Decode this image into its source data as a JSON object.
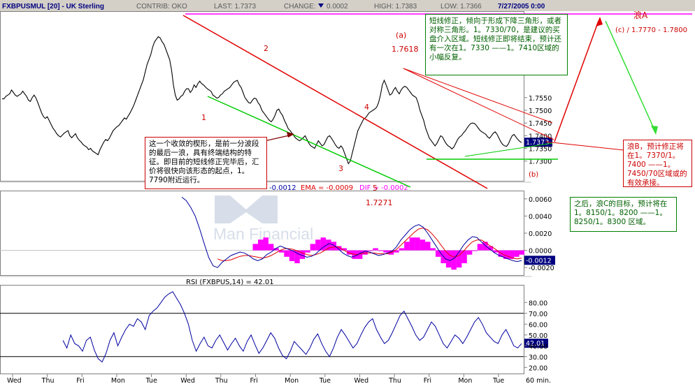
{
  "header": {
    "symbol": "FXBPUSMUL [20] - UK Sterling",
    "contrib": "CONTRIB: OKO",
    "last": "LAST: 1.7373",
    "change_label": "CHANGE:",
    "change_value": "0.0002",
    "high": "HIGH: 1.7383",
    "low": "LOW: 1.7366",
    "date": "7/27/2005 0:00"
  },
  "watermark": {
    "brand": "Man Financial"
  },
  "chart_data": [
    {
      "type": "line",
      "name": "price",
      "ylim": [
        1.7225,
        1.7885
      ],
      "yticks": [
        {
          "value": 1.73,
          "label": "1.7300"
        },
        {
          "value": 1.735,
          "label": "1.7350"
        },
        {
          "value": 1.74,
          "label": "1.7400"
        },
        {
          "value": 1.745,
          "label": "1.7450"
        },
        {
          "value": 1.75,
          "label": "1.7500"
        },
        {
          "value": 1.755,
          "label": "1.7550"
        }
      ],
      "last_value_label": "1.7373",
      "xlabels": [
        "Wed",
        "Thu",
        "Fri",
        "Mon",
        "Tue",
        "Wed",
        "Thu",
        "Fri",
        "Mon",
        "Tue",
        "Wed",
        "Thu",
        "Fri",
        "Mon",
        "Tue"
      ],
      "x_unit": "60 min.",
      "close": [
        1.7545,
        1.7545,
        1.7555,
        1.756,
        1.7565,
        1.758,
        1.757,
        1.756,
        1.7555,
        1.756,
        1.7565,
        1.7575,
        1.7565,
        1.7555,
        1.754,
        1.7535,
        1.755,
        1.756,
        1.7548,
        1.753,
        1.751,
        1.749,
        1.7475,
        1.7468,
        1.7475,
        1.746,
        1.7445,
        1.743,
        1.742,
        1.7408,
        1.74,
        1.7395,
        1.7402,
        1.741,
        1.7415,
        1.742,
        1.74,
        1.7392,
        1.74,
        1.7408,
        1.7392,
        1.7382,
        1.7375,
        1.7365,
        1.736,
        1.7355,
        1.7345,
        1.735,
        1.734,
        1.7335,
        1.733,
        1.7325,
        1.7345,
        1.736,
        1.7375,
        1.7385,
        1.738,
        1.739,
        1.7405,
        1.742,
        1.7428,
        1.7435,
        1.744,
        1.745,
        1.746,
        1.747,
        1.7465,
        1.7478,
        1.749,
        1.7505,
        1.752,
        1.754,
        1.756,
        1.758,
        1.76,
        1.762,
        1.765,
        1.768,
        1.77,
        1.772,
        1.775,
        1.777,
        1.778,
        1.779,
        1.7785,
        1.777,
        1.776,
        1.774,
        1.772,
        1.77,
        1.766,
        1.76,
        1.756,
        1.754,
        1.7545,
        1.7555,
        1.756,
        1.7575,
        1.7585,
        1.7585,
        1.757,
        1.758,
        1.76,
        1.759,
        1.7605,
        1.7615,
        1.7605,
        1.76,
        1.7592,
        1.7585,
        1.758,
        1.7575,
        1.756,
        1.7555,
        1.7548,
        1.755,
        1.756,
        1.7565,
        1.7575,
        1.758,
        1.7585,
        1.759,
        1.76,
        1.761,
        1.7615,
        1.7618,
        1.76,
        1.759,
        1.757,
        1.755,
        1.754,
        1.753,
        1.7528,
        1.754,
        1.7548,
        1.7545,
        1.753,
        1.752,
        1.75,
        1.749,
        1.748,
        1.747,
        1.746,
        1.7455,
        1.7465,
        1.748,
        1.75,
        1.7505,
        1.749,
        1.748,
        1.746,
        1.7445,
        1.7428,
        1.742,
        1.741,
        1.74,
        1.739,
        1.7385,
        1.738,
        1.7385,
        1.7392,
        1.74,
        1.7385,
        1.737,
        1.736,
        1.7355,
        1.735,
        1.7365,
        1.738,
        1.737,
        1.736,
        1.7365,
        1.738,
        1.7395,
        1.74,
        1.739,
        1.7378,
        1.7365,
        1.7355,
        1.735,
        1.736,
        1.735,
        1.733,
        1.731,
        1.729,
        1.73,
        1.733,
        1.736,
        1.739,
        1.742,
        1.7435,
        1.745,
        1.7465,
        1.747,
        1.748,
        1.749,
        1.7495,
        1.75,
        1.7505,
        1.7512,
        1.753,
        1.756,
        1.76,
        1.7618,
        1.76,
        1.758,
        1.756,
        1.7565,
        1.758,
        1.759,
        1.7575,
        1.7565,
        1.758,
        1.759,
        1.7595,
        1.759,
        1.758,
        1.757,
        1.756,
        1.7555,
        1.755,
        1.753,
        1.75,
        1.748,
        1.746,
        1.743,
        1.741,
        1.739,
        1.738,
        1.737,
        1.736,
        1.737,
        1.7385,
        1.74,
        1.7395,
        1.738,
        1.7368,
        1.736,
        1.7355,
        1.7348,
        1.7355,
        1.737,
        1.7385,
        1.7395,
        1.74,
        1.741,
        1.7418,
        1.743,
        1.744,
        1.7448,
        1.745,
        1.7448,
        1.744,
        1.743,
        1.742,
        1.7415,
        1.741,
        1.7405,
        1.7395,
        1.739,
        1.74,
        1.741,
        1.7415,
        1.7405,
        1.739,
        1.7375,
        1.7365,
        1.736,
        1.7358,
        1.7368,
        1.7385,
        1.74,
        1.7405,
        1.7395,
        1.7385,
        1.7378,
        1.7373
      ]
    },
    {
      "type": "line",
      "name": "macd",
      "ylim": [
        -0.0028,
        0.0068
      ],
      "yticks": [
        {
          "value": 0.006,
          "label": "0.0060"
        },
        {
          "value": 0.004,
          "label": "0.0040"
        },
        {
          "value": 0.002,
          "label": "0.0020"
        },
        {
          "value": 0,
          "label": "0.0000"
        },
        {
          "value": -0.002,
          "label": "-0.0020"
        }
      ],
      "legend": [
        "-0.0012",
        "EMA = -0.0009",
        "DIF = -0.0002"
      ],
      "last_value_label": "-0.0012",
      "macd": [
        0.0062,
        0.0058,
        0.005,
        0.004,
        0.0025,
        0.0008,
        -0.0008,
        -0.0018,
        -0.002,
        -0.0014,
        -0.001,
        -0.0006,
        -0.0004,
        -0.0002,
        -0.0003,
        -0.0006,
        -0.001,
        -0.0012,
        -0.001,
        -0.0005,
        -0.0002,
        0.0002,
        0.0005,
        0.0003,
        0.0001,
        -0.0001,
        -0.0004,
        -0.0006,
        -0.0008,
        -0.0007,
        -0.0004,
        0.0001,
        0.0005,
        0.0008,
        0.0006,
        0.0002,
        -0.0003,
        -0.0006,
        -0.0008,
        -0.0006,
        -0.0003,
        -0.0001,
        -0.0002,
        -0.0004,
        -0.0006,
        -0.0005,
        -0.0003,
        -0.0001,
        0.0004,
        0.0012,
        0.0018,
        0.0024,
        0.0028,
        0.003,
        0.0027,
        0.002,
        0.0012,
        0.0004,
        -0.0004,
        -0.001,
        -0.0012,
        -0.0009,
        -0.0002,
        0.0006,
        0.0012,
        0.0016,
        0.0015,
        0.001,
        0.0005,
        0.0001,
        -0.0003,
        -0.0006,
        -0.0008,
        -0.001,
        -0.0012,
        -0.0013,
        -0.0012
      ],
      "ema": [
        null,
        null,
        null,
        null,
        null,
        null,
        null,
        null,
        -0.001,
        -0.0012,
        -0.0012,
        -0.0011,
        -0.0009,
        -0.0007,
        -0.0006,
        -0.0006,
        -0.0007,
        -0.0008,
        -0.0009,
        -0.0008,
        -0.0006,
        -0.0003,
        0.0,
        0.0002,
        0.0002,
        0.0001,
        -0.0001,
        -0.0003,
        -0.0005,
        -0.0006,
        -0.0005,
        -0.0003,
        0.0,
        0.0003,
        0.0004,
        0.0004,
        0.0001,
        -0.0002,
        -0.0004,
        -0.0005,
        -0.0004,
        -0.0003,
        -0.0003,
        -0.0003,
        -0.0004,
        -0.0004,
        -0.0004,
        -0.0002,
        0.0001,
        0.0006,
        0.0011,
        0.0016,
        0.0021,
        0.0025,
        0.0026,
        0.0024,
        0.0019,
        0.0013,
        0.0006,
        -0.0001,
        -0.0006,
        -0.0008,
        -0.0006,
        -0.0001,
        0.0005,
        0.001,
        0.0012,
        0.0012,
        0.0009,
        0.0005,
        0.0002,
        -0.0002,
        -0.0005,
        -0.0007,
        -0.0009,
        -0.001,
        -0.0009
      ],
      "dif_hist": [
        0.0003,
        0.0005,
        0.0006,
        0.0003,
        0.0001,
        -0.0001,
        -0.0003,
        -0.0005,
        -0.0006,
        -0.0004,
        -0.0001,
        0.0003,
        0.0005,
        0.0006,
        0.0005,
        0.0004,
        0.0002,
        0.0001,
        -0.0002,
        -0.0004,
        -0.0004,
        -0.0002,
        0.0,
        0.0001,
        0.0,
        -0.0001,
        -0.0002,
        -0.0001,
        0.0001,
        0.0004,
        0.0006,
        0.0006,
        0.0005,
        0.0004,
        0.0001,
        -0.0003,
        -0.0006,
        -0.0008,
        -0.0009,
        -0.0008,
        -0.0006,
        -0.0002,
        0.0,
        0.0003,
        0.0004,
        0.0002,
        -0.0001,
        -0.0003,
        -0.0004,
        -0.0004,
        -0.0003,
        -0.0002
      ]
    },
    {
      "type": "line",
      "name": "rsi",
      "title": "RSI (FXBPUS,14) = 42.01",
      "ylim": [
        15,
        95
      ],
      "yticks": [
        {
          "value": 80,
          "label": "80.00"
        },
        {
          "value": 70,
          "label": "70.00"
        },
        {
          "value": 60,
          "label": "60.00"
        },
        {
          "value": 50,
          "label": "50.00"
        },
        {
          "value": 40,
          "label": "40.00"
        },
        {
          "value": 30,
          "label": "30.00"
        },
        {
          "value": 20,
          "label": "20.00"
        }
      ],
      "overbought": 70,
      "oversold": 30,
      "last_value_label": "42.01",
      "values": [
        45,
        38,
        50,
        42,
        40,
        35,
        45,
        48,
        36,
        28,
        25,
        33,
        45,
        52,
        40,
        48,
        55,
        60,
        58,
        65,
        62,
        55,
        68,
        72,
        75,
        80,
        85,
        88,
        90,
        84,
        78,
        70,
        60,
        45,
        35,
        42,
        48,
        40,
        38,
        45,
        50,
        43,
        36,
        42,
        47,
        40,
        35,
        44,
        50,
        41,
        33,
        38,
        45,
        52,
        47,
        38,
        31,
        28,
        35,
        44,
        40,
        36,
        32,
        38,
        46,
        51,
        42,
        35,
        30,
        38,
        48,
        55,
        50,
        44,
        38,
        42,
        50,
        57,
        62,
        65,
        55,
        48,
        42,
        45,
        52,
        60,
        68,
        72,
        65,
        58,
        50,
        45,
        48,
        55,
        62,
        58,
        50,
        42,
        38,
        44,
        50,
        47,
        42,
        48,
        55,
        62,
        66,
        60,
        52,
        48,
        44,
        42,
        50,
        55,
        48,
        40,
        38,
        42
      ]
    },
    {
      "type": "table",
      "name": "annotations",
      "wave_labels": [
        "1",
        "2",
        "3",
        "4",
        "5",
        "(a)",
        "1.7618",
        "1.7271",
        "(b)",
        "(c) / 1.7770 - 1.7800"
      ]
    }
  ],
  "notes": {
    "wave_a": "浪A",
    "box_wedge": "这一个收敛的楔形，是前一分波段的最后一浪，具有终端结构的特征。即目前的短线修正完毕后，汇价将很快向该形态的起点，1。7790附近运行。",
    "box_short": "短线修正，倾向于形成下降三角形，或者对称三角形。1。7330/70，是建议的买盘介入区域。短线修正即将结束，预计还有一次在1。7330 ——1。7410区域的小幅反复。",
    "box_b": "浪B，预计修正将在1。7370/1。7400 ——1。7450/70区域或的有效承接。",
    "box_c": "之后，浪C的目标，预计将在1。8150/1。8200 ——1。8250/1。8300 区域。"
  },
  "colors": {
    "header_bg": "#d4d0c8",
    "price_line": "#000000",
    "wedge_upper": "#e00000",
    "wedge_lower": "#00cc00",
    "macd_line": "#0000a0",
    "ema_line": "#e00000",
    "dif_hist": "#ff00ff",
    "rsi_line": "#0000a0",
    "last_tag": "#000080",
    "note_red": "#cc0000",
    "note_green": "#008000",
    "wave_a_line": "#ff00ff"
  }
}
